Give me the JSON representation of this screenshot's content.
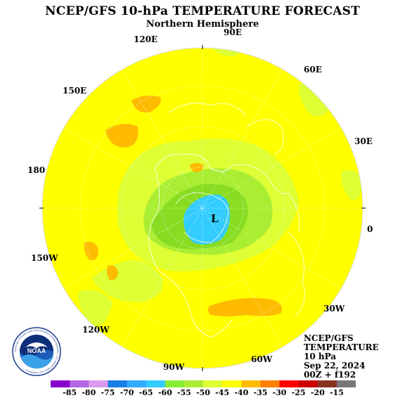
{
  "header": {
    "title": "NCEP/GFS 10-hPa TEMPERATURE FORECAST",
    "subtitle": "Northern Hemisphere"
  },
  "longitude_labels": {
    "lon_90e": "90E",
    "lon_120e": "120E",
    "lon_60e": "60E",
    "lon_150e": "150E",
    "lon_30e": "30E",
    "lon_180": "180",
    "lon_0": "0",
    "lon_150w": "150W",
    "lon_30w": "30W",
    "lon_120w": "120W",
    "lon_60w": "60W",
    "lon_90w": "90W"
  },
  "low_marker": "L",
  "info": {
    "line1": "NCEP/GFS",
    "line2": "TEMPERATURE",
    "line3": "10 hPa",
    "line4": "Sep 22, 2024",
    "line5": "00Z + f192"
  },
  "colorbar": {
    "labels": [
      "-85",
      "-80",
      "-75",
      "-70",
      "-65",
      "-60",
      "-55",
      "-50",
      "-45",
      "-40",
      "-35",
      "-30",
      "-25",
      "-20",
      "-15"
    ],
    "colors": [
      "#8800cc",
      "#b366e6",
      "#dd99ee",
      "#1a7fe6",
      "#33aaff",
      "#33ccff",
      "#88ee33",
      "#aaee33",
      "#ddff33",
      "#ffff00",
      "#ffbb00",
      "#ff7f00",
      "#ff0000",
      "#cc0000",
      "#883322",
      "#777777"
    ]
  },
  "logo": {
    "text": "NOAA",
    "ring_text": "NATIONAL OCEANIC AND ATMOSPHERIC ADMINISTRATION · U.S. DEPARTMENT OF COMMERCE"
  },
  "colors": {
    "warm_fill": "#ffff00",
    "light_green": "#ddff33",
    "green": "#aaee33",
    "dark_green": "#88dd22",
    "cyan_core": "#33ccff",
    "orange": "#ffbb00"
  }
}
